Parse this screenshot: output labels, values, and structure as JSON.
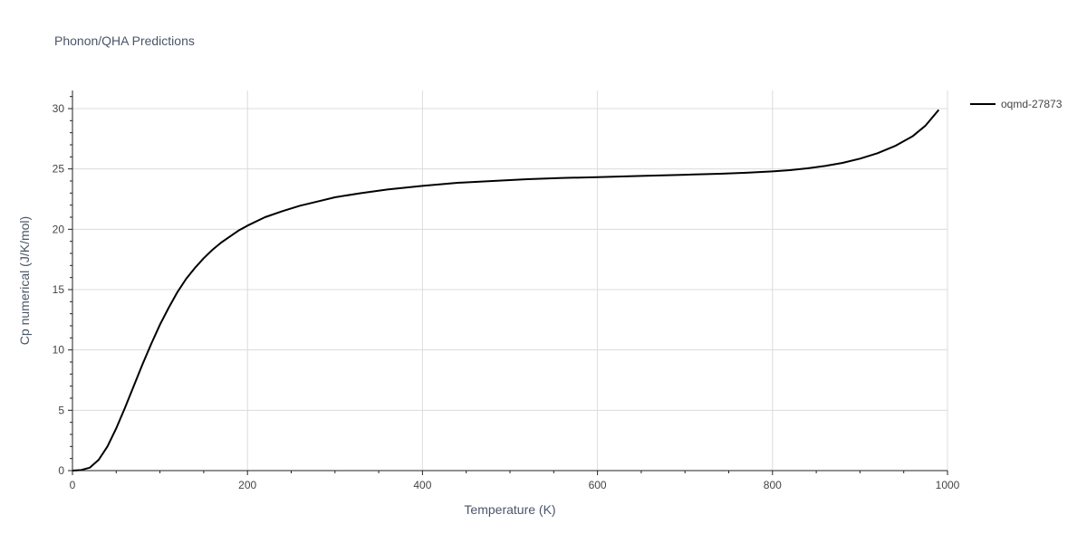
{
  "chart_data": {
    "type": "line",
    "title": "Phonon/QHA Predictions",
    "xlabel": "Temperature (K)",
    "ylabel": "Cp numerical (J/K/mol)",
    "xlim": [
      0,
      1000
    ],
    "ylim": [
      0,
      31.5
    ],
    "x_ticks": [
      0,
      200,
      400,
      600,
      800,
      1000
    ],
    "y_ticks": [
      0,
      5,
      10,
      15,
      20,
      25,
      30
    ],
    "grid": true,
    "legend_position": "top-right",
    "series": [
      {
        "name": "oqmd-27873",
        "color": "#000000",
        "x": [
          0,
          10,
          20,
          30,
          40,
          50,
          60,
          70,
          80,
          90,
          100,
          110,
          120,
          130,
          140,
          150,
          160,
          170,
          180,
          190,
          200,
          220,
          240,
          260,
          280,
          300,
          330,
          360,
          380,
          400,
          440,
          480,
          520,
          560,
          600,
          650,
          700,
          740,
          770,
          800,
          820,
          840,
          860,
          880,
          900,
          920,
          940,
          960,
          975,
          990
        ],
        "y": [
          0,
          0.05,
          0.25,
          0.9,
          2.0,
          3.5,
          5.2,
          7.0,
          8.8,
          10.5,
          12.1,
          13.5,
          14.8,
          15.9,
          16.8,
          17.6,
          18.3,
          18.9,
          19.4,
          19.9,
          20.3,
          21.0,
          21.5,
          21.95,
          22.3,
          22.65,
          23.0,
          23.3,
          23.45,
          23.6,
          23.85,
          24.0,
          24.15,
          24.25,
          24.32,
          24.42,
          24.52,
          24.6,
          24.68,
          24.8,
          24.9,
          25.05,
          25.25,
          25.5,
          25.85,
          26.3,
          26.9,
          27.7,
          28.6,
          29.9
        ]
      }
    ]
  }
}
